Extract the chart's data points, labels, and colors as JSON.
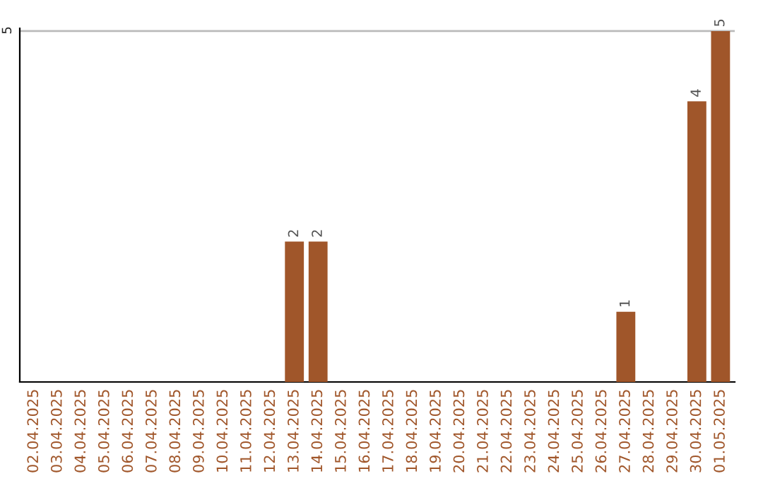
{
  "chart_data": {
    "type": "bar",
    "categories": [
      "02.04.2025",
      "03.04.2025",
      "04.04.2025",
      "05.04.2025",
      "06.04.2025",
      "07.04.2025",
      "08.04.2025",
      "09.04.2025",
      "10.04.2025",
      "11.04.2025",
      "12.04.2025",
      "13.04.2025",
      "14.04.2025",
      "15.04.2025",
      "16.04.2025",
      "17.04.2025",
      "18.04.2025",
      "19.04.2025",
      "20.04.2025",
      "21.04.2025",
      "22.04.2025",
      "23.04.2025",
      "24.04.2025",
      "25.04.2025",
      "26.04.2025",
      "27.04.2025",
      "28.04.2025",
      "29.04.2025",
      "30.04.2025",
      "01.05.2025"
    ],
    "values": [
      0,
      0,
      0,
      0,
      0,
      0,
      0,
      0,
      0,
      0,
      0,
      2,
      2,
      0,
      0,
      0,
      0,
      0,
      0,
      0,
      0,
      0,
      0,
      0,
      0,
      1,
      0,
      0,
      4,
      5
    ],
    "value_labels": [
      null,
      null,
      null,
      null,
      null,
      null,
      null,
      null,
      null,
      null,
      null,
      "2",
      "2",
      null,
      null,
      null,
      null,
      null,
      null,
      null,
      null,
      null,
      null,
      null,
      null,
      "1",
      null,
      null,
      "4",
      "5"
    ],
    "color": "#a0562a",
    "ylim": [
      0,
      5.04
    ],
    "yticks": [
      5
    ],
    "ref_lines": [
      {
        "axis": "y",
        "value": 5,
        "color": "#bbbbbb"
      }
    ],
    "legend": false
  }
}
